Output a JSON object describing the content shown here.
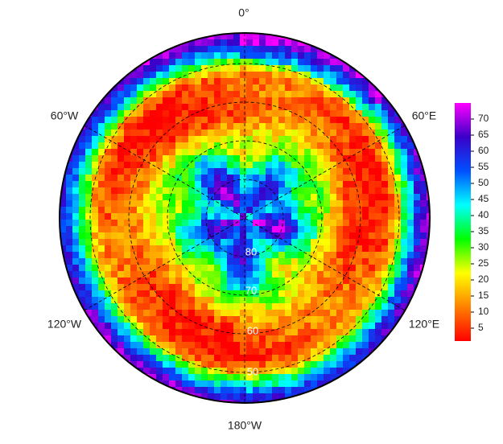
{
  "map": {
    "longitude_labels": [
      "0°",
      "60°W",
      "60°E",
      "120°W",
      "120°E",
      "180°W"
    ],
    "latitude_labels": [
      "80",
      "70",
      "60",
      "50"
    ],
    "colorbar": {
      "lim": [
        1,
        75
      ],
      "ticks": [
        5,
        10,
        15,
        20,
        25,
        30,
        35,
        40,
        45,
        50,
        55,
        60,
        65,
        70
      ],
      "colors": [
        "#ff0000",
        "#ff8000",
        "#ffff00",
        "#00ff00",
        "#00ffff",
        "#0050ff",
        "#3a00c8",
        "#ff00ff"
      ]
    }
  }
}
